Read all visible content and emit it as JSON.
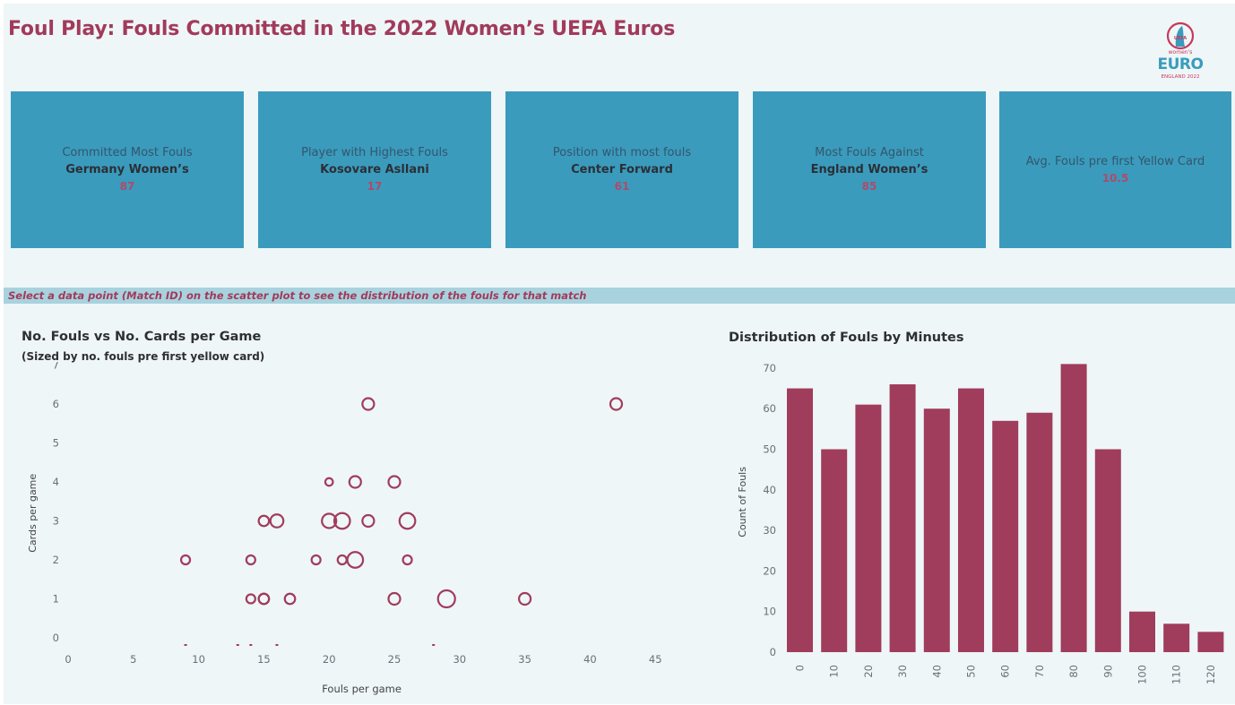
{
  "title": "Foul Play: Fouls Committed in the 2022 Women’s UEFA Euros",
  "logo": {
    "line1": "UEFA",
    "line2": "women's",
    "line3": "EURO",
    "line4": "ENGLAND 2022"
  },
  "kpis": [
    {
      "label": "Committed Most Fouls",
      "name": "Germany Women’s",
      "value": "87"
    },
    {
      "label": "Player with Highest Fouls",
      "name": "Kosovare Asllani",
      "value": "17"
    },
    {
      "label": "Position with most fouls",
      "name": "Center Forward",
      "value": "61"
    },
    {
      "label": "Most Fouls Against",
      "name": "England Women’s",
      "value": "85"
    },
    {
      "label": "Avg. Fouls pre first Yellow Card",
      "name": "",
      "value": "10.5"
    }
  ],
  "instruction": "Select a data point (Match ID) on the scatter plot to see the distribution of the fouls for that match",
  "colors": {
    "accent": "#a23a5a",
    "kpi_bg": "#3a9bbd",
    "band": "#a8d2de",
    "bar": "#a03c5c"
  },
  "chart_data": [
    {
      "type": "scatter",
      "title": "No. Fouls vs No. Cards per Game",
      "subtitle": "(Sized by no. fouls pre first yellow card)",
      "xlabel": "Fouls per game",
      "ylabel": "Cards per game",
      "xlim": [
        0,
        45
      ],
      "ylim": [
        0,
        7
      ],
      "xticks": [
        0,
        5,
        10,
        15,
        20,
        25,
        30,
        35,
        40,
        45
      ],
      "yticks": [
        0,
        1,
        2,
        3,
        4,
        5,
        6,
        7
      ],
      "points": [
        {
          "x": 23,
          "y": 6,
          "size": 6
        },
        {
          "x": 42,
          "y": 6,
          "size": 6
        },
        {
          "x": 20,
          "y": 4,
          "size": 3
        },
        {
          "x": 22,
          "y": 4,
          "size": 6
        },
        {
          "x": 25,
          "y": 4,
          "size": 6
        },
        {
          "x": 15,
          "y": 3,
          "size": 5
        },
        {
          "x": 16,
          "y": 3,
          "size": 7
        },
        {
          "x": 20,
          "y": 3,
          "size": 8
        },
        {
          "x": 21,
          "y": 3,
          "size": 9
        },
        {
          "x": 23,
          "y": 3,
          "size": 6
        },
        {
          "x": 26,
          "y": 3,
          "size": 9
        },
        {
          "x": 9,
          "y": 2,
          "size": 4
        },
        {
          "x": 14,
          "y": 2,
          "size": 4
        },
        {
          "x": 19,
          "y": 2,
          "size": 4
        },
        {
          "x": 21,
          "y": 2,
          "size": 4
        },
        {
          "x": 22,
          "y": 2,
          "size": 9
        },
        {
          "x": 26,
          "y": 2,
          "size": 4
        },
        {
          "x": 14,
          "y": 1,
          "size": 4
        },
        {
          "x": 15,
          "y": 1,
          "size": 5
        },
        {
          "x": 15,
          "y": 1,
          "size": 5
        },
        {
          "x": 17,
          "y": 1,
          "size": 5
        },
        {
          "x": 25,
          "y": 1,
          "size": 6
        },
        {
          "x": 29,
          "y": 1,
          "size": 10
        },
        {
          "x": 35,
          "y": 1,
          "size": 6
        },
        {
          "x": 9,
          "y": 0,
          "size": 0.5
        },
        {
          "x": 13,
          "y": 0,
          "size": 0.5
        },
        {
          "x": 14,
          "y": 0,
          "size": 0.5
        },
        {
          "x": 16,
          "y": 0,
          "size": 0.5
        },
        {
          "x": 28,
          "y": 0,
          "size": 0.5
        }
      ]
    },
    {
      "type": "bar",
      "title": "Distribution of Fouls by Minutes",
      "ylabel": "Count of Fouls",
      "ylim": [
        0,
        72
      ],
      "yticks": [
        0,
        10,
        20,
        30,
        40,
        50,
        60,
        70
      ],
      "categories": [
        "0",
        "10",
        "20",
        "30",
        "40",
        "50",
        "60",
        "70",
        "80",
        "90",
        "100",
        "110",
        "120"
      ],
      "values": [
        65,
        50,
        61,
        66,
        60,
        65,
        57,
        59,
        71,
        50,
        10,
        7,
        5
      ]
    }
  ]
}
